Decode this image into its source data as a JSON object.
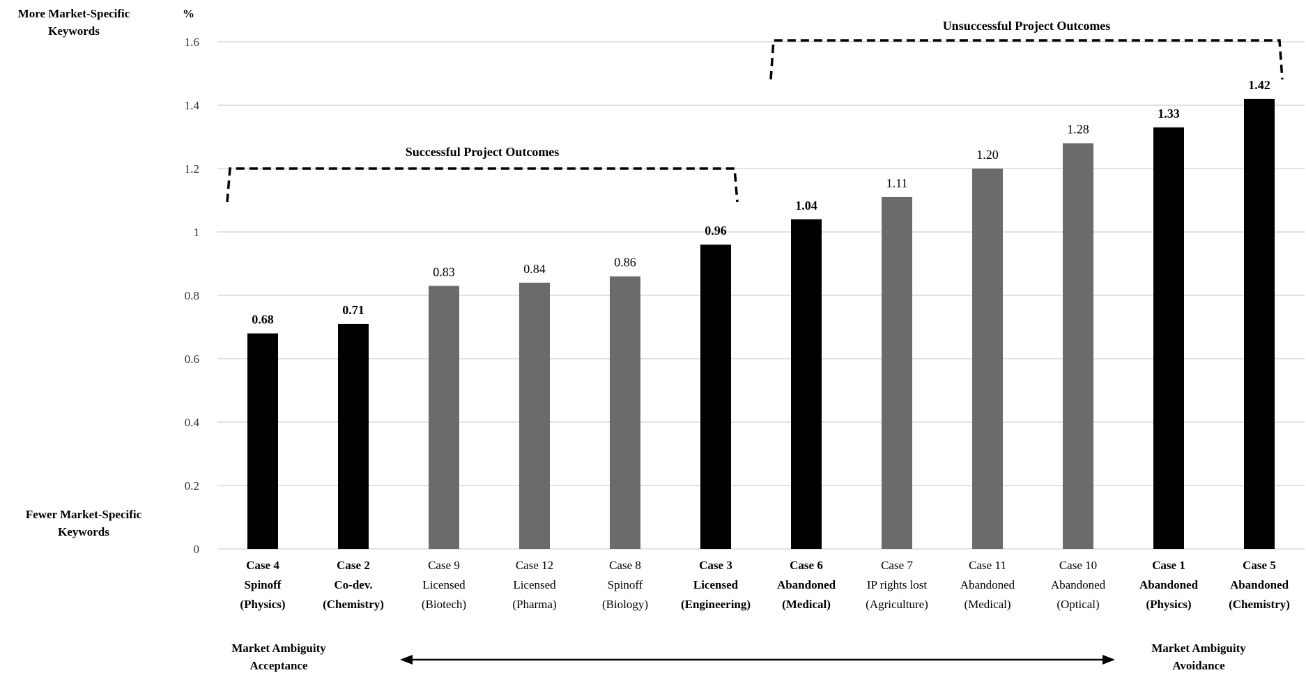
{
  "labels": {
    "top_left": "More Market-Specific Keywords",
    "unit": "%",
    "bottom_left": "Fewer Market-Specific Keywords",
    "axis_left": "Market Ambiguity Acceptance",
    "axis_right": "Market Ambiguity Avoidance"
  },
  "chart_data": {
    "type": "bar",
    "ylim": [
      0,
      1.6
    ],
    "yticks": [
      "0",
      "0.2",
      "0.4",
      "0.6",
      "0.8",
      "1",
      "1.2",
      "1.4",
      "1.6"
    ],
    "grid": true,
    "colors": {
      "highlighted": "#000000",
      "other": "#6b6b6b"
    },
    "categories": [
      [
        "Case 4",
        "Spinoff",
        "(Physics)"
      ],
      [
        "Case 2",
        "Co-dev.",
        "(Chemistry)"
      ],
      [
        "Case 9",
        "Licensed",
        "(Biotech)"
      ],
      [
        "Case 12",
        "Licensed",
        "(Pharma)"
      ],
      [
        "Case 8",
        "Spinoff",
        "(Biology)"
      ],
      [
        "Case 3",
        "Licensed",
        "(Engineering)"
      ],
      [
        "Case 6",
        "Abandoned",
        "(Medical)"
      ],
      [
        "Case 7",
        "IP rights lost",
        "(Agriculture)"
      ],
      [
        "Case 11",
        "Abandoned",
        "(Medical)"
      ],
      [
        "Case 10",
        "Abandoned",
        "(Optical)"
      ],
      [
        "Case 1",
        "Abandoned",
        "(Physics)"
      ],
      [
        "Case 5",
        "Abandoned",
        "(Chemistry)"
      ]
    ],
    "values": [
      0.68,
      0.71,
      0.83,
      0.84,
      0.86,
      0.96,
      1.04,
      1.11,
      1.2,
      1.28,
      1.33,
      1.42
    ],
    "value_labels": [
      "0.68",
      "0.71",
      "0.83",
      "0.84",
      "0.86",
      "0.96",
      "1.04",
      "1.11",
      "1.20",
      "1.28",
      "1.33",
      "1.42"
    ],
    "highlighted": [
      true,
      true,
      false,
      false,
      false,
      true,
      true,
      false,
      false,
      false,
      true,
      true
    ],
    "groups": [
      {
        "label": "Successful Project Outcomes",
        "from": 0,
        "to": 5
      },
      {
        "label": "Unsuccessful Project Outcomes",
        "from": 6,
        "to": 11
      }
    ]
  }
}
